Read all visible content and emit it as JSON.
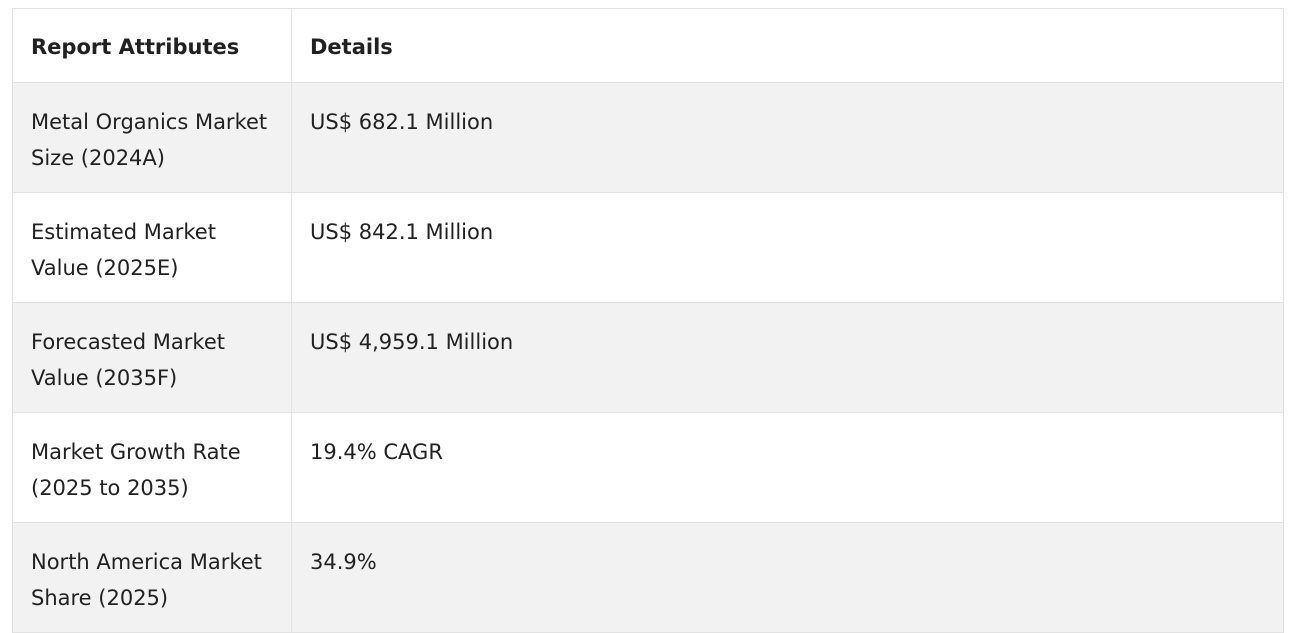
{
  "table": {
    "headers": [
      "Report Attributes",
      "Details"
    ],
    "rows": [
      {
        "attribute": "Metal Organics Market Size (2024A)",
        "detail": "US$ 682.1 Million"
      },
      {
        "attribute": "Estimated Market Value (2025E)",
        "detail": "US$ 842.1 Million"
      },
      {
        "attribute": "Forecasted Market Value (2035F)",
        "detail": "US$ 4,959.1 Million"
      },
      {
        "attribute": "Market Growth Rate (2025 to 2035)",
        "detail": "19.4% CAGR"
      },
      {
        "attribute": "North America Market Share (2025)",
        "detail": "34.9%"
      }
    ]
  }
}
